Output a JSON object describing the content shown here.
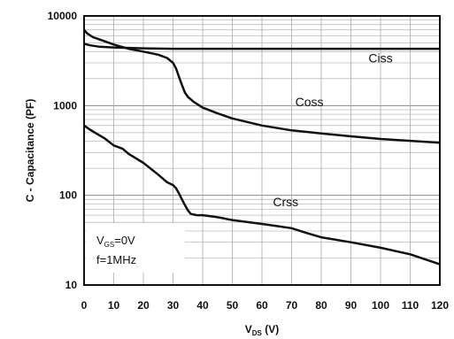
{
  "chart_data": {
    "type": "line",
    "title": "",
    "ylabel": "C - Capacitance (PF)",
    "xlabel_main": "V",
    "xlabel_sub": "DS",
    "xlabel_unit": " (V)",
    "yscale": "log",
    "ylim": [
      10,
      10000
    ],
    "xlim": [
      0,
      120
    ],
    "grid": true,
    "x_ticks": [
      "0",
      "10",
      "20",
      "30",
      "40",
      "50",
      "60",
      "70",
      "80",
      "90",
      "100",
      "110",
      "120"
    ],
    "y_ticks": [
      "10",
      "100",
      "1000",
      "10000"
    ],
    "annotation": {
      "vgs_main": "V",
      "vgs_sub": "GS",
      "vgs_value": "=0V",
      "freq": "f=1MHz"
    },
    "series": [
      {
        "name": "Ciss",
        "x": [
          0,
          2,
          5,
          10,
          15,
          20,
          30,
          40,
          60,
          80,
          100,
          120
        ],
        "y": [
          4900,
          4700,
          4550,
          4450,
          4400,
          4350,
          4300,
          4300,
          4300,
          4300,
          4300,
          4300
        ]
      },
      {
        "name": "Coss",
        "x": [
          0,
          1,
          3,
          5,
          10,
          15,
          20,
          25,
          28,
          30,
          31,
          32,
          33,
          34,
          35,
          37,
          40,
          45,
          50,
          60,
          70,
          80,
          90,
          100,
          110,
          120
        ],
        "y": [
          7000,
          6400,
          5800,
          5500,
          4800,
          4300,
          4000,
          3700,
          3400,
          3000,
          2600,
          2100,
          1700,
          1400,
          1250,
          1100,
          950,
          820,
          720,
          600,
          530,
          490,
          455,
          425,
          405,
          385
        ]
      },
      {
        "name": "Crss",
        "x": [
          0,
          2,
          5,
          7,
          10,
          13,
          15,
          20,
          25,
          28,
          30,
          31,
          32,
          33,
          34,
          35,
          36,
          38,
          40,
          45,
          50,
          60,
          70,
          75,
          80,
          90,
          100,
          110,
          120
        ],
        "y": [
          600,
          540,
          470,
          430,
          360,
          330,
          290,
          230,
          170,
          140,
          130,
          120,
          105,
          90,
          78,
          68,
          62,
          60,
          60,
          57,
          53,
          48,
          43,
          38,
          34,
          30,
          26,
          22,
          17
        ]
      }
    ]
  }
}
